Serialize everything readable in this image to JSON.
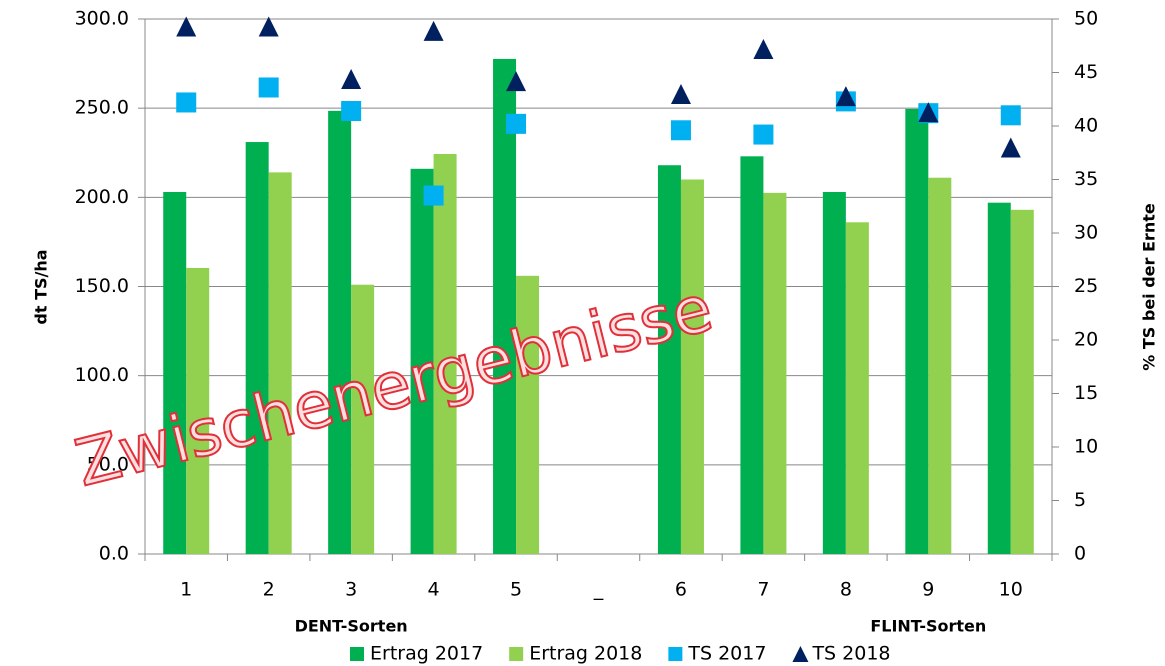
{
  "chart_data": {
    "type": "bar",
    "categories": [
      "1",
      "2",
      "3",
      "4",
      "5",
      "_",
      "6",
      "7",
      "8",
      "9",
      "10"
    ],
    "series": [
      {
        "name": "Ertrag 2017",
        "color": "#00b050",
        "type": "bar",
        "values": [
          203,
          231,
          248.5,
          216,
          277.6,
          null,
          218,
          223,
          203,
          249.6,
          197
        ]
      },
      {
        "name": "Ertrag 2018",
        "color": "#92d050",
        "type": "bar",
        "values": [
          160.4,
          214,
          151,
          224.3,
          156,
          null,
          210,
          202.5,
          186,
          211,
          193
        ]
      },
      {
        "name": "TS 2017",
        "color": "#00b0f0",
        "type": "square",
        "axis": "y2",
        "values": [
          42.2,
          43.6,
          41.4,
          33.5,
          40.2,
          null,
          39.6,
          39.2,
          42.3,
          41.2,
          41.0
        ]
      },
      {
        "name": "TS 2018",
        "color": "#002060",
        "type": "triangle",
        "axis": "y2",
        "values": [
          49.2,
          49.2,
          44.3,
          48.8,
          44.1,
          null,
          42.9,
          47.1,
          42.7,
          41.2,
          37.9
        ]
      }
    ],
    "ylabel": "dt TS/ha",
    "y2label": "% TS bei der Ernte",
    "ylim": [
      0,
      300
    ],
    "yticks": [
      {
        "value": 0,
        "label": "0.0"
      },
      {
        "value": 50,
        "label": "50.0"
      },
      {
        "value": 100,
        "label": "100.0"
      },
      {
        "value": 150,
        "label": "150.0"
      },
      {
        "value": 200,
        "label": "200.0"
      },
      {
        "value": 250,
        "label": "250.0"
      },
      {
        "value": 300,
        "label": "300.0"
      }
    ],
    "y2lim": [
      0,
      50
    ],
    "y2ticks": [
      0,
      5,
      10,
      15,
      20,
      25,
      30,
      35,
      40,
      45,
      50
    ],
    "grid": true,
    "group_labels": [
      "DENT-Sorten",
      "FLINT-Sorten"
    ],
    "annotation": "Zwischenergebnisse",
    "legend": "bottom"
  }
}
